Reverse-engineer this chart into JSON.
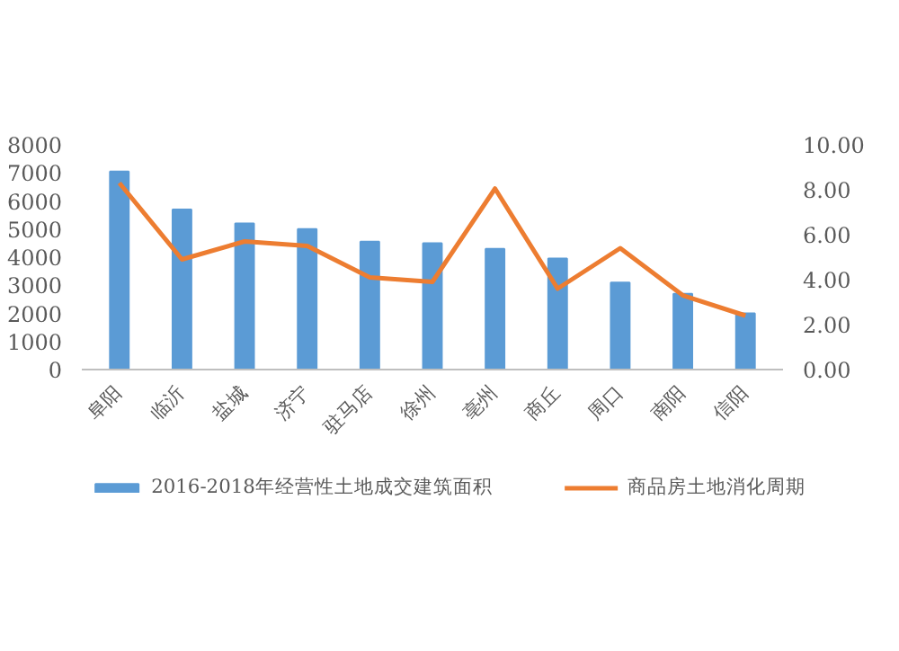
{
  "chart_data": {
    "type": "bar",
    "categories": [
      "阜阳",
      "临沂",
      "盐城",
      "济宁",
      "驻马店",
      "徐州",
      "亳州",
      "商丘",
      "周口",
      "南阳",
      "信阳"
    ],
    "series": [
      {
        "name": "2016-2018年经营性土地成交建筑面积",
        "color": "#5b9bd5",
        "values": [
          7050,
          5700,
          5200,
          5000,
          4550,
          4500,
          4300,
          3950,
          3100,
          2700,
          2000
        ]
      },
      {
        "name": "商品房土地消化周期",
        "type": "line",
        "axis": "y2",
        "color": "#ed7d31",
        "values": [
          8.3,
          4.9,
          5.7,
          5.5,
          4.1,
          3.9,
          8.05,
          3.6,
          5.4,
          3.3,
          2.4
        ]
      }
    ],
    "ylim": [
      0,
      8000
    ],
    "yticks": [
      0,
      1000,
      2000,
      3000,
      4000,
      5000,
      6000,
      7000,
      8000
    ],
    "y2lim": [
      0,
      10
    ],
    "y2ticks": [
      {
        "value": 0,
        "label": "0.00"
      },
      {
        "value": 2,
        "label": "2.00"
      },
      {
        "value": 4,
        "label": "4.00"
      },
      {
        "value": 6,
        "label": "6.00"
      },
      {
        "value": 8,
        "label": "8.00"
      },
      {
        "value": 10,
        "label": "10.00"
      }
    ],
    "grid": false,
    "legend": "bottom",
    "marker": "none",
    "line_style": "solid"
  }
}
